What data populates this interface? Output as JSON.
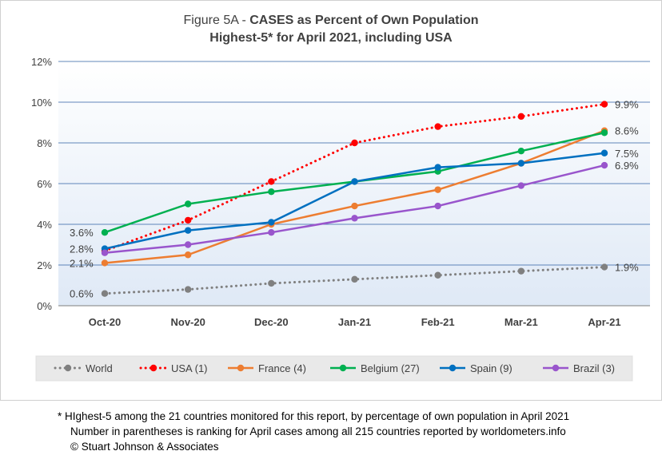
{
  "chart_data": {
    "type": "line",
    "title_prefix": "Figure 5A - ",
    "title_bold": "CASES as Percent of Own Population",
    "subtitle": "Highest-5* for April 2021, including USA",
    "categories": [
      "Oct-20",
      "Nov-20",
      "Dec-20",
      "Jan-21",
      "Feb-21",
      "Mar-21",
      "Apr-21"
    ],
    "y_ticks": [
      "0%",
      "2%",
      "4%",
      "6%",
      "8%",
      "10%",
      "12%"
    ],
    "ylim": [
      0,
      12
    ],
    "grid": true,
    "legend_position": "bottom",
    "series": [
      {
        "name": "World",
        "color": "#808080",
        "dotted": true,
        "values": [
          0.6,
          0.8,
          1.1,
          1.3,
          1.5,
          1.7,
          1.9
        ]
      },
      {
        "name": "USA (1)",
        "color": "#ff0000",
        "dotted": true,
        "values": [
          2.7,
          4.2,
          6.1,
          8.0,
          8.8,
          9.3,
          9.9
        ]
      },
      {
        "name": "France (4)",
        "color": "#ed7d31",
        "dotted": false,
        "values": [
          2.1,
          2.5,
          4.0,
          4.9,
          5.7,
          7.0,
          8.6
        ]
      },
      {
        "name": "Belgium (27)",
        "color": "#00b050",
        "dotted": false,
        "values": [
          3.6,
          5.0,
          5.6,
          6.1,
          6.6,
          7.6,
          8.5
        ]
      },
      {
        "name": "Spain (9)",
        "color": "#0070c0",
        "dotted": false,
        "values": [
          2.8,
          3.7,
          4.1,
          6.1,
          6.8,
          7.0,
          7.5
        ]
      },
      {
        "name": "Brazil (3)",
        "color": "#9955cc",
        "dotted": false,
        "values": [
          2.6,
          3.0,
          3.6,
          4.3,
          4.9,
          5.9,
          6.9
        ]
      }
    ],
    "start_labels": [
      {
        "text": "3.6%",
        "value": 3.6
      },
      {
        "text": "2.8%",
        "value": 2.8
      },
      {
        "text": "2.1%",
        "value": 2.1
      },
      {
        "text": "0.6%",
        "value": 0.6
      }
    ],
    "end_labels": [
      {
        "text": "9.9%",
        "value": 9.9
      },
      {
        "text": "8.6%",
        "value": 8.6
      },
      {
        "text": "7.5%",
        "value": 7.5
      },
      {
        "text": "6.9%",
        "value": 6.9
      },
      {
        "text": "1.9%",
        "value": 1.9
      }
    ]
  },
  "footnotes": {
    "line1": "* HIghest-5 among the 21 countries monitored for this report, by percentage of own population in April 2021",
    "line2": "Number in parentheses is ranking for April cases among all 215 countries reported by worldometers.info",
    "line3": "© Stuart Johnson & Associates"
  }
}
